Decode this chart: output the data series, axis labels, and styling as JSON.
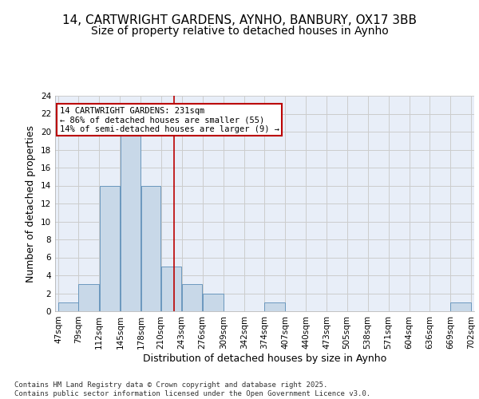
{
  "title_line1": "14, CARTWRIGHT GARDENS, AYNHO, BANBURY, OX17 3BB",
  "title_line2": "Size of property relative to detached houses in Aynho",
  "xlabel": "Distribution of detached houses by size in Aynho",
  "ylabel": "Number of detached properties",
  "footnote": "Contains HM Land Registry data © Crown copyright and database right 2025.\nContains public sector information licensed under the Open Government Licence v3.0.",
  "bin_edges": [
    47,
    79,
    112,
    145,
    178,
    210,
    243,
    276,
    309,
    342,
    374,
    407,
    440,
    473,
    505,
    538,
    571,
    604,
    636,
    669,
    702
  ],
  "bin_labels": [
    "47sqm",
    "79sqm",
    "112sqm",
    "145sqm",
    "178sqm",
    "210sqm",
    "243sqm",
    "276sqm",
    "309sqm",
    "342sqm",
    "374sqm",
    "407sqm",
    "440sqm",
    "473sqm",
    "505sqm",
    "538sqm",
    "571sqm",
    "604sqm",
    "636sqm",
    "669sqm",
    "702sqm"
  ],
  "bar_heights": [
    1,
    3,
    14,
    20,
    14,
    5,
    3,
    2,
    0,
    0,
    1,
    0,
    0,
    0,
    0,
    0,
    0,
    0,
    0,
    1
  ],
  "bar_color": "#c8d8e8",
  "bar_edgecolor": "#5b8db8",
  "vline_x": 231,
  "vline_color": "#bb0000",
  "annotation_text": "14 CARTWRIGHT GARDENS: 231sqm\n← 86% of detached houses are smaller (55)\n14% of semi-detached houses are larger (9) →",
  "annotation_box_edgecolor": "#bb0000",
  "ylim": [
    0,
    24
  ],
  "yticks": [
    0,
    2,
    4,
    6,
    8,
    10,
    12,
    14,
    16,
    18,
    20,
    22,
    24
  ],
  "grid_color": "#cccccc",
  "bg_color": "#e8eef8",
  "title_fontsize": 11,
  "subtitle_fontsize": 10,
  "axis_label_fontsize": 9,
  "tick_fontsize": 7.5,
  "footnote_fontsize": 6.5
}
